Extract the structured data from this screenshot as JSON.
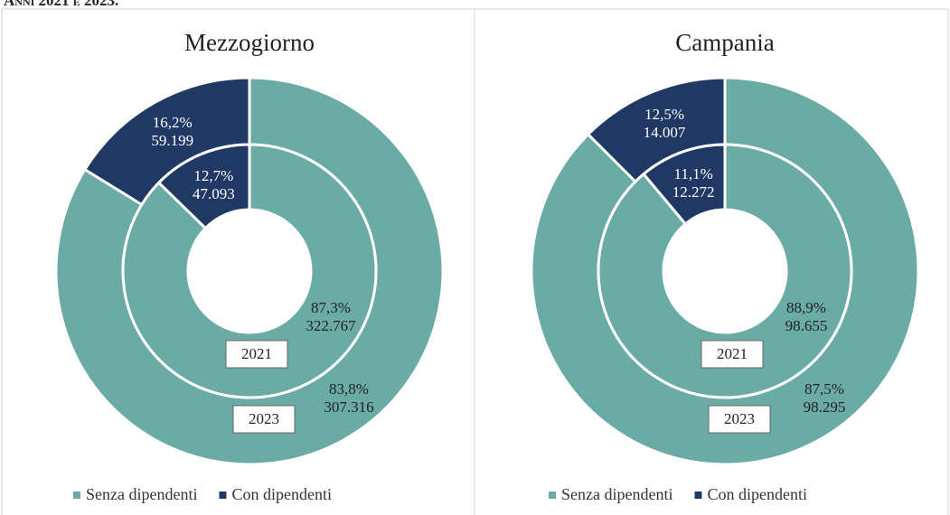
{
  "caption": "Anni 2021 e 2023.",
  "chart_data": [
    {
      "type": "nested-donut",
      "title": "Mezzogiorno",
      "categories": [
        "Senza dipendenti",
        "Con dipendenti"
      ],
      "colors": [
        "#6aaba5",
        "#1f3864"
      ],
      "rings": [
        {
          "name": "2023",
          "values": [
            83.8,
            16.2
          ],
          "value_labels": [
            "83,8%",
            "16,2%"
          ],
          "counts": [
            307316,
            59199
          ],
          "count_labels": [
            "307.316",
            "59.199"
          ]
        },
        {
          "name": "2021",
          "values": [
            87.3,
            12.7
          ],
          "value_labels": [
            "87,3%",
            "12,7%"
          ],
          "counts": [
            322767,
            47093
          ],
          "count_labels": [
            "322.767",
            "47.093"
          ]
        }
      ]
    },
    {
      "type": "nested-donut",
      "title": "Campania",
      "categories": [
        "Senza dipendenti",
        "Con dipendenti"
      ],
      "colors": [
        "#6aaba5",
        "#1f3864"
      ],
      "rings": [
        {
          "name": "2023",
          "values": [
            87.5,
            12.5
          ],
          "value_labels": [
            "87,5%",
            "12,5%"
          ],
          "counts": [
            98295,
            14007
          ],
          "count_labels": [
            "98.295",
            "14.007"
          ]
        },
        {
          "name": "2021",
          "values": [
            88.9,
            11.1
          ],
          "value_labels": [
            "88,9%",
            "11,1%"
          ],
          "counts": [
            98655,
            12272
          ],
          "count_labels": [
            "98.655",
            "12.272"
          ]
        }
      ]
    }
  ]
}
